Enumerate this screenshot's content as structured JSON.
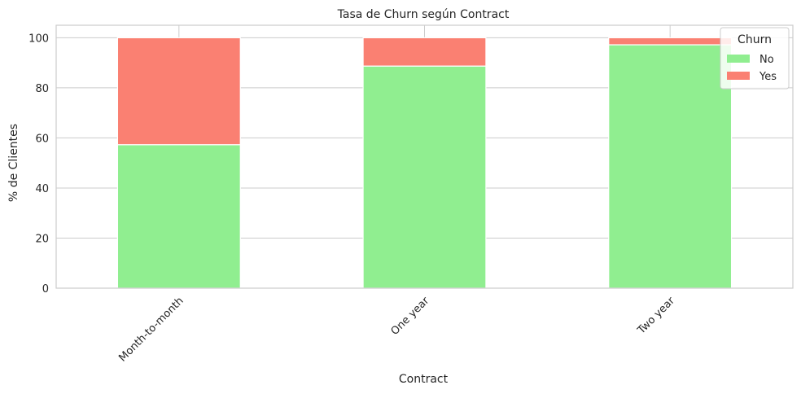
{
  "chart_data": {
    "type": "bar",
    "stacked": true,
    "title": "Tasa de Churn según Contract",
    "xlabel": "Contract",
    "ylabel": "% de Clientes",
    "categories": [
      "Month-to-month",
      "One year",
      "Two year"
    ],
    "series": [
      {
        "name": "No",
        "values": [
          57.3,
          88.7,
          97.2
        ],
        "color": "#90ee90"
      },
      {
        "name": "Yes",
        "values": [
          42.7,
          11.3,
          2.8
        ],
        "color": "#fa8072"
      }
    ],
    "ylim": [
      0,
      105
    ],
    "yticks": [
      0,
      20,
      40,
      60,
      80,
      100
    ],
    "grid": true,
    "legend": {
      "title": "Churn",
      "position": "top-right"
    }
  }
}
